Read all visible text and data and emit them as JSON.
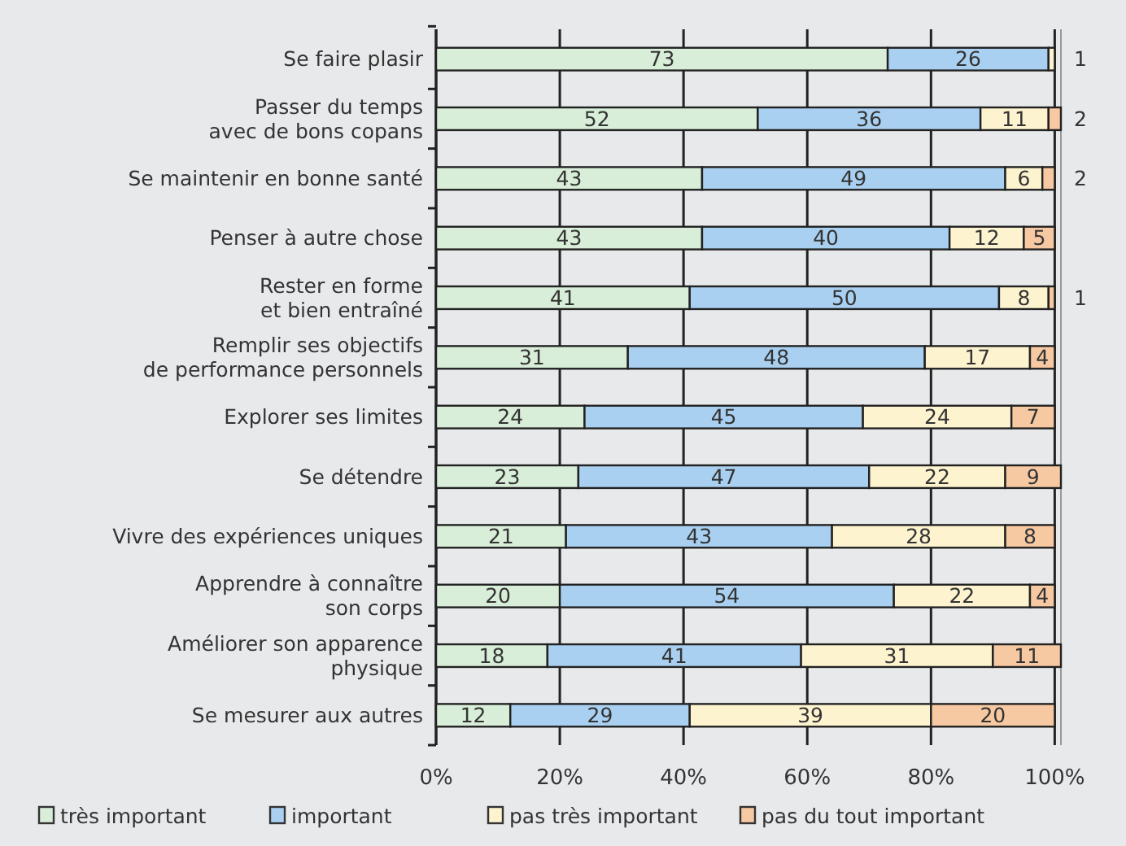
{
  "chart_data": {
    "type": "bar",
    "orientation": "horizontal",
    "stacked": true,
    "data_labels": true,
    "grid": "x",
    "legend": "bottom",
    "categories": [
      "Se faire plasir",
      "Passer du temps\navec de bons copans",
      "Se maintenir en bonne santé",
      "Penser à autre chose",
      "Rester en forme\net bien entraîné",
      "Remplir ses objectifs\nde performance personnels",
      "Explorer ses limites",
      "Se détendre",
      "Vivre des expériences uniques",
      "Apprendre à connaître\nson corps",
      "Améliorer son apparence\nphysique",
      "Se mesurer aux autres"
    ],
    "series": [
      {
        "name": "très important",
        "color": "#d8eed8",
        "values": [
          73,
          52,
          43,
          43,
          41,
          31,
          24,
          23,
          21,
          20,
          18,
          12
        ]
      },
      {
        "name": "important",
        "color": "#a9d0f0",
        "values": [
          26,
          36,
          49,
          40,
          50,
          48,
          45,
          47,
          43,
          54,
          41,
          29
        ]
      },
      {
        "name": "pas très important",
        "color": "#fdf3cf",
        "values": [
          1,
          11,
          6,
          12,
          8,
          17,
          24,
          22,
          28,
          22,
          31,
          39
        ]
      },
      {
        "name": "pas du tout important",
        "color": "#f7c9a3",
        "values": [
          null,
          2,
          2,
          5,
          1,
          4,
          7,
          9,
          8,
          4,
          11,
          20
        ]
      }
    ],
    "xlim": [
      0,
      101
    ],
    "xticks": [
      {
        "value": 0,
        "label": "0%"
      },
      {
        "value": 20,
        "label": "20%"
      },
      {
        "value": 40,
        "label": "40%"
      },
      {
        "value": 60,
        "label": "60%"
      },
      {
        "value": 80,
        "label": "80%"
      },
      {
        "value": 100,
        "label": "100%"
      }
    ]
  }
}
